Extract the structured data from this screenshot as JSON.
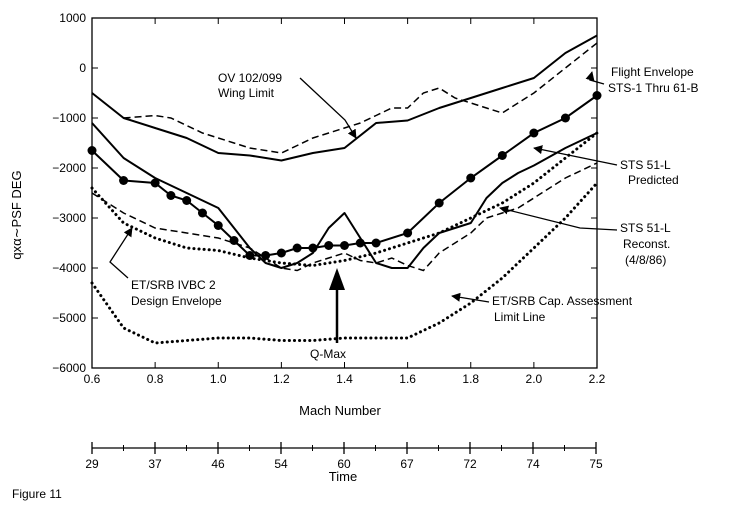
{
  "chart_data": {
    "type": "line",
    "title": "",
    "xlabel": "Mach Number",
    "ylabel": "qxα∼PSF DEG",
    "xlim": [
      0.6,
      2.2
    ],
    "ylim": [
      -6000,
      1000
    ],
    "x_ticks": [
      0.6,
      0.8,
      1.0,
      1.2,
      1.4,
      1.6,
      1.8,
      2.0,
      2.2
    ],
    "x_tick_labels": [
      "0.6",
      "0.8",
      "1.0",
      "1.2",
      "1.4",
      "1.6",
      "1.8",
      "2.0",
      "2.2"
    ],
    "y_ticks": [
      1000,
      0,
      -1000,
      -2000,
      -3000,
      -4000,
      -5000,
      -6000
    ],
    "y_tick_labels": [
      "1000",
      "0",
      "−1000",
      "−2000",
      "−3000",
      "−4000",
      "−5000",
      "−6000"
    ],
    "grid": false,
    "legend": "none (annotations with arrows)",
    "series": [
      {
        "style": "solid",
        "x": [
          0.6,
          0.7,
          0.8,
          0.9,
          1.0,
          1.1,
          1.2,
          1.3,
          1.4,
          1.5,
          1.6,
          1.7,
          1.8,
          1.9,
          2.0,
          2.1,
          2.2
        ],
        "values": [
          -500,
          -1000,
          -1200,
          -1400,
          -1700,
          -1750,
          -1850,
          -1700,
          -1600,
          -1100,
          -1050,
          -800,
          -600,
          -400,
          -200,
          300,
          650
        ]
      },
      {
        "style": "dashed",
        "x": [
          0.7,
          0.8,
          0.85,
          0.9,
          0.95,
          1.0,
          1.05,
          1.1,
          1.15,
          1.2,
          1.25,
          1.3,
          1.35,
          1.4,
          1.45,
          1.5,
          1.55,
          1.6,
          1.65,
          1.7,
          1.75,
          1.8,
          1.85,
          1.9,
          2.0,
          2.1,
          2.2
        ],
        "values": [
          -1000,
          -950,
          -1000,
          -1150,
          -1300,
          -1400,
          -1500,
          -1600,
          -1650,
          -1700,
          -1550,
          -1400,
          -1300,
          -1200,
          -1100,
          -950,
          -800,
          -800,
          -500,
          -400,
          -600,
          -700,
          -800,
          -900,
          -500,
          0,
          500
        ]
      },
      {
        "style": "solid",
        "x": [
          0.6,
          0.7,
          0.8,
          0.9,
          1.0,
          1.1,
          1.15,
          1.2,
          1.25,
          1.3,
          1.35,
          1.4,
          1.45,
          1.5,
          1.55,
          1.6,
          1.65,
          1.7,
          1.75,
          1.8,
          1.85,
          1.9,
          1.95,
          2.0,
          2.1,
          2.2
        ],
        "values": [
          -1100,
          -1800,
          -2200,
          -2500,
          -2800,
          -3600,
          -3900,
          -4000,
          -3900,
          -3700,
          -3200,
          -2900,
          -3400,
          -3900,
          -4000,
          -4000,
          -3600,
          -3300,
          -3200,
          -3100,
          -2600,
          -2300,
          -2100,
          -1950,
          -1600,
          -1300
        ]
      },
      {
        "style": "dashed",
        "x": [
          0.6,
          0.7,
          0.8,
          0.9,
          1.0,
          1.1,
          1.15,
          1.2,
          1.25,
          1.3,
          1.35,
          1.4,
          1.45,
          1.5,
          1.55,
          1.6,
          1.65,
          1.7,
          1.75,
          1.8,
          1.85,
          1.9,
          1.95,
          2.0,
          2.1,
          2.2
        ],
        "values": [
          -2500,
          -2900,
          -3200,
          -3300,
          -3400,
          -3600,
          -3800,
          -4000,
          -4050,
          -3900,
          -3800,
          -3700,
          -3850,
          -3900,
          -3800,
          -3950,
          -4050,
          -3700,
          -3500,
          -3300,
          -3000,
          -2900,
          -2800,
          -2600,
          -2200,
          -1900
        ]
      },
      {
        "style": "markers",
        "x": [
          0.6,
          0.7,
          0.8,
          0.85,
          0.9,
          0.95,
          1.0,
          1.05,
          1.1,
          1.15,
          1.2,
          1.25,
          1.3,
          1.35,
          1.4,
          1.45,
          1.5,
          1.6,
          1.7,
          1.8,
          1.9,
          2.0,
          2.1,
          2.2
        ],
        "values": [
          -1650,
          -2250,
          -2300,
          -2550,
          -2650,
          -2900,
          -3150,
          -3450,
          -3750,
          -3750,
          -3700,
          -3600,
          -3600,
          -3550,
          -3550,
          -3500,
          -3500,
          -3300,
          -2700,
          -2200,
          -1750,
          -1300,
          -1000,
          -550
        ]
      },
      {
        "style": "dotted",
        "x": [
          0.6,
          0.7,
          0.8,
          0.9,
          1.0,
          1.1,
          1.2,
          1.3,
          1.4,
          1.5,
          1.6,
          1.7,
          1.8,
          1.9,
          2.0,
          2.1,
          2.2
        ],
        "values": [
          -2400,
          -3100,
          -3400,
          -3600,
          -3650,
          -3800,
          -3900,
          -3950,
          -3850,
          -3700,
          -3500,
          -3300,
          -3000,
          -2700,
          -2300,
          -1800,
          -1300
        ]
      },
      {
        "style": "dotted",
        "x": [
          0.6,
          0.7,
          0.8,
          0.9,
          1.0,
          1.1,
          1.2,
          1.3,
          1.4,
          1.5,
          1.6,
          1.7,
          1.8,
          1.9,
          2.0,
          2.1,
          2.2
        ],
        "values": [
          -4300,
          -5200,
          -5500,
          -5450,
          -5400,
          -5400,
          -5450,
          -5450,
          -5400,
          -5400,
          -5400,
          -5100,
          -4700,
          -4200,
          -3600,
          -3000,
          -2300
        ]
      }
    ],
    "annotations": [
      {
        "text": "OV 102/099"
      },
      {
        "text": "Wing Limit"
      },
      {
        "text": "Flight Envelope"
      },
      {
        "text": "STS-1 Thru 61-B"
      },
      {
        "text": "STS 51-L"
      },
      {
        "text": "Predicted"
      },
      {
        "text": "STS 51-L"
      },
      {
        "text": "Reconst."
      },
      {
        "text": "(4/8/86)"
      },
      {
        "text": "ET/SRB IVBC 2"
      },
      {
        "text": "Design Envelope"
      },
      {
        "text": "ET/SRB Cap. Assessment"
      },
      {
        "text": "Limit Line"
      },
      {
        "text": "Q-Max"
      }
    ],
    "time_axis": {
      "label": "Time",
      "ticks": [
        "29",
        "37",
        "46",
        "54",
        "60",
        "67",
        "72",
        "74",
        "75"
      ]
    }
  },
  "figure_label": "Figure 11"
}
